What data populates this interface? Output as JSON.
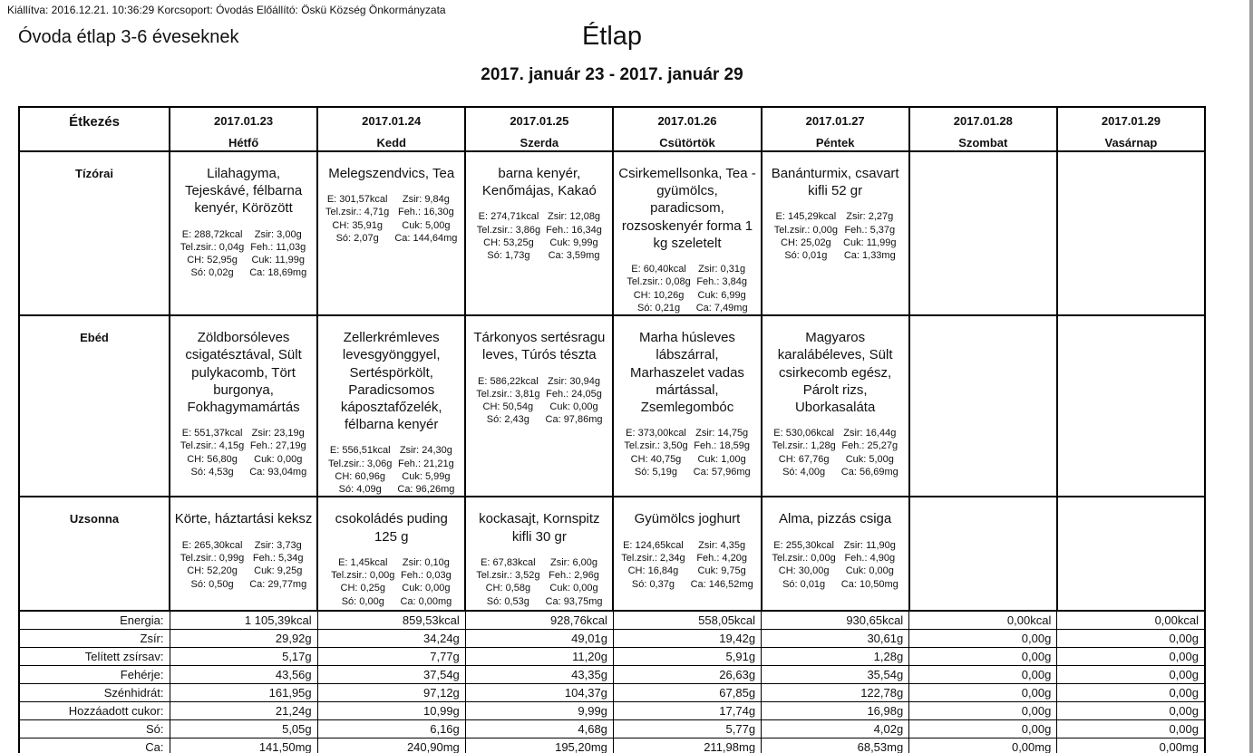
{
  "meta": {
    "issued_line": "Kiállítva: 2016.12.21. 10:36:29 Korcsoport: Óvodás Előállító: Öskü Község Önkormányzata"
  },
  "header": {
    "left_title": "Óvoda étlap 3-6 éveseknek",
    "center_title": "Étlap",
    "date_range": "2017. január 23 - 2017. január 29"
  },
  "table": {
    "corner_label": "Étkezés",
    "days": [
      {
        "date": "2017.01.23",
        "name": "Hétfő"
      },
      {
        "date": "2017.01.24",
        "name": "Kedd"
      },
      {
        "date": "2017.01.25",
        "name": "Szerda"
      },
      {
        "date": "2017.01.26",
        "name": "Csütörtök"
      },
      {
        "date": "2017.01.27",
        "name": "Péntek"
      },
      {
        "date": "2017.01.28",
        "name": "Szombat"
      },
      {
        "date": "2017.01.29",
        "name": "Vasárnap"
      }
    ],
    "meal_rows": [
      {
        "label": "Tízórai",
        "cells": [
          {
            "menu": "Lilahagyma, Tejeskávé, félbarna kenyér, Körözött",
            "left": [
              "E: 288,72kcal",
              "Tel.zsir.: 0,04g",
              "CH: 52,95g",
              "Só: 0,02g"
            ],
            "right": [
              "Zsir: 3,00g",
              "Feh.: 11,03g",
              "Cuk: 11,99g",
              "Ca: 18,69mg"
            ]
          },
          {
            "menu": "Melegszendvics, Tea",
            "left": [
              "E: 301,57kcal",
              "Tel.zsir.: 4,71g",
              "CH: 35,91g",
              "Só: 2,07g"
            ],
            "right": [
              "Zsir: 9,84g",
              "Feh.: 16,30g",
              "Cuk: 5,00g",
              "Ca: 144,64mg"
            ]
          },
          {
            "menu": "barna kenyér, Kenőmájas, Kakaó",
            "left": [
              "E: 274,71kcal",
              "Tel.zsir.: 3,86g",
              "CH: 53,25g",
              "Só: 1,73g"
            ],
            "right": [
              "Zsir: 12,08g",
              "Feh.: 16,34g",
              "Cuk: 9,99g",
              "Ca: 3,59mg"
            ]
          },
          {
            "menu": "Csirkemellsonka, Tea - gyümölcs, paradicsom, rozsoskenyér forma 1 kg szeletelt",
            "left": [
              "E: 60,40kcal",
              "Tel.zsir.: 0,08g",
              "CH: 10,26g",
              "Só: 0,21g"
            ],
            "right": [
              "Zsir: 0,31g",
              "Feh.: 3,84g",
              "Cuk: 6,99g",
              "Ca: 7,49mg"
            ]
          },
          {
            "menu": "Banánturmix, csavart kifli 52 gr",
            "left": [
              "E: 145,29kcal",
              "Tel.zsir.: 0,00g",
              "CH: 25,02g",
              "Só: 0,01g"
            ],
            "right": [
              "Zsir: 2,27g",
              "Feh.: 5,37g",
              "Cuk: 11,99g",
              "Ca: 1,33mg"
            ]
          },
          null,
          null
        ]
      },
      {
        "label": "Ebéd",
        "cells": [
          {
            "menu": "Zöldborsóleves csigatésztával, Sült pulykacomb, Tört burgonya, Fokhagymamártás",
            "left": [
              "E: 551,37kcal",
              "Tel.zsir.: 4,15g",
              "CH: 56,80g",
              "Só: 4,53g"
            ],
            "right": [
              "Zsir: 23,19g",
              "Feh.: 27,19g",
              "Cuk: 0,00g",
              "Ca: 93,04mg"
            ]
          },
          {
            "menu": "Zellerkrémleves levesgyönggyel, Sertéspörkölt, Paradicsomos káposztafőzelék, félbarna kenyér",
            "left": [
              "E: 556,51kcal",
              "Tel.zsir.: 3,06g",
              "CH: 60,96g",
              "Só: 4,09g"
            ],
            "right": [
              "Zsir: 24,30g",
              "Feh.: 21,21g",
              "Cuk: 5,99g",
              "Ca: 96,26mg"
            ]
          },
          {
            "menu": "Tárkonyos sertésragu leves, Túrós tészta",
            "left": [
              "E: 586,22kcal",
              "Tel.zsir.: 3,81g",
              "CH: 50,54g",
              "Só: 2,43g"
            ],
            "right": [
              "Zsir: 30,94g",
              "Feh.: 24,05g",
              "Cuk: 0,00g",
              "Ca: 97,86mg"
            ]
          },
          {
            "menu": "Marha húsleves lábszárral, Marhaszelet vadas mártással, Zsemlegombóc",
            "left": [
              "E: 373,00kcal",
              "Tel.zsir.: 3,50g",
              "CH: 40,75g",
              "Só: 5,19g"
            ],
            "right": [
              "Zsir: 14,75g",
              "Feh.: 18,59g",
              "Cuk: 1,00g",
              "Ca: 57,96mg"
            ]
          },
          {
            "menu": "Magyaros karalábéleves, Sült csirkecomb egész, Párolt rizs, Uborkasaláta",
            "left": [
              "E: 530,06kcal",
              "Tel.zsir.: 1,28g",
              "CH: 67,76g",
              "Só: 4,00g"
            ],
            "right": [
              "Zsir: 16,44g",
              "Feh.: 25,27g",
              "Cuk: 5,00g",
              "Ca: 56,69mg"
            ]
          },
          null,
          null
        ]
      },
      {
        "label": "Uzsonna",
        "cells": [
          {
            "menu": "Körte, háztartási keksz",
            "left": [
              "E: 265,30kcal",
              "Tel.zsir.: 0,99g",
              "CH: 52,20g",
              "Só: 0,50g"
            ],
            "right": [
              "Zsir: 3,73g",
              "Feh.: 5,34g",
              "Cuk: 9,25g",
              "Ca: 29,77mg"
            ]
          },
          {
            "menu": "csokoládés puding 125  g",
            "left": [
              "E: 1,45kcal",
              "Tel.zsir.: 0,00g",
              "CH: 0,25g",
              "Só: 0,00g"
            ],
            "right": [
              "Zsir: 0,10g",
              "Feh.: 0,03g",
              "Cuk: 0,00g",
              "Ca: 0,00mg"
            ]
          },
          {
            "menu": "kockasajt, Kornspitz kifli 30 gr",
            "left": [
              "E: 67,83kcal",
              "Tel.zsir.: 3,52g",
              "CH: 0,58g",
              "Só: 0,53g"
            ],
            "right": [
              "Zsir: 6,00g",
              "Feh.: 2,96g",
              "Cuk: 0,00g",
              "Ca: 93,75mg"
            ]
          },
          {
            "menu": "Gyümölcs joghurt",
            "left": [
              "E: 124,65kcal",
              "Tel.zsir.: 2,34g",
              "CH: 16,84g",
              "Só: 0,37g"
            ],
            "right": [
              "Zsir: 4,35g",
              "Feh.: 4,20g",
              "Cuk: 9,75g",
              "Ca: 146,52mg"
            ]
          },
          {
            "menu": "Alma, pizzás csiga",
            "left": [
              "E: 255,30kcal",
              "Tel.zsir.: 0,00g",
              "CH: 30,00g",
              "Só: 0,01g"
            ],
            "right": [
              "Zsir: 11,90g",
              "Feh.: 4,90g",
              "Cuk: 0,00g",
              "Ca: 10,50mg"
            ]
          },
          null,
          null
        ]
      }
    ],
    "summary_rows": [
      {
        "label": "Energia:",
        "values": [
          "1 105,39kcal",
          "859,53kcal",
          "928,76kcal",
          "558,05kcal",
          "930,65kcal",
          "0,00kcal",
          "0,00kcal"
        ]
      },
      {
        "label": "Zsír:",
        "values": [
          "29,92g",
          "34,24g",
          "49,01g",
          "19,42g",
          "30,61g",
          "0,00g",
          "0,00g"
        ]
      },
      {
        "label": "Telített zsírsav:",
        "values": [
          "5,17g",
          "7,77g",
          "11,20g",
          "5,91g",
          "1,28g",
          "0,00g",
          "0,00g"
        ]
      },
      {
        "label": "Fehérje:",
        "values": [
          "43,56g",
          "37,54g",
          "43,35g",
          "26,63g",
          "35,54g",
          "0,00g",
          "0,00g"
        ]
      },
      {
        "label": "Szénhidrát:",
        "values": [
          "161,95g",
          "97,12g",
          "104,37g",
          "67,85g",
          "122,78g",
          "0,00g",
          "0,00g"
        ]
      },
      {
        "label": "Hozzáadott cukor:",
        "values": [
          "21,24g",
          "10,99g",
          "9,99g",
          "17,74g",
          "16,98g",
          "0,00g",
          "0,00g"
        ]
      },
      {
        "label": "Só:",
        "values": [
          "5,05g",
          "6,16g",
          "4,68g",
          "5,77g",
          "4,02g",
          "0,00g",
          "0,00g"
        ]
      },
      {
        "label": "Ca:",
        "values": [
          "141,50mg",
          "240,90mg",
          "195,20mg",
          "211,98mg",
          "68,53mg",
          "0,00mg",
          "0,00mg"
        ]
      }
    ]
  }
}
